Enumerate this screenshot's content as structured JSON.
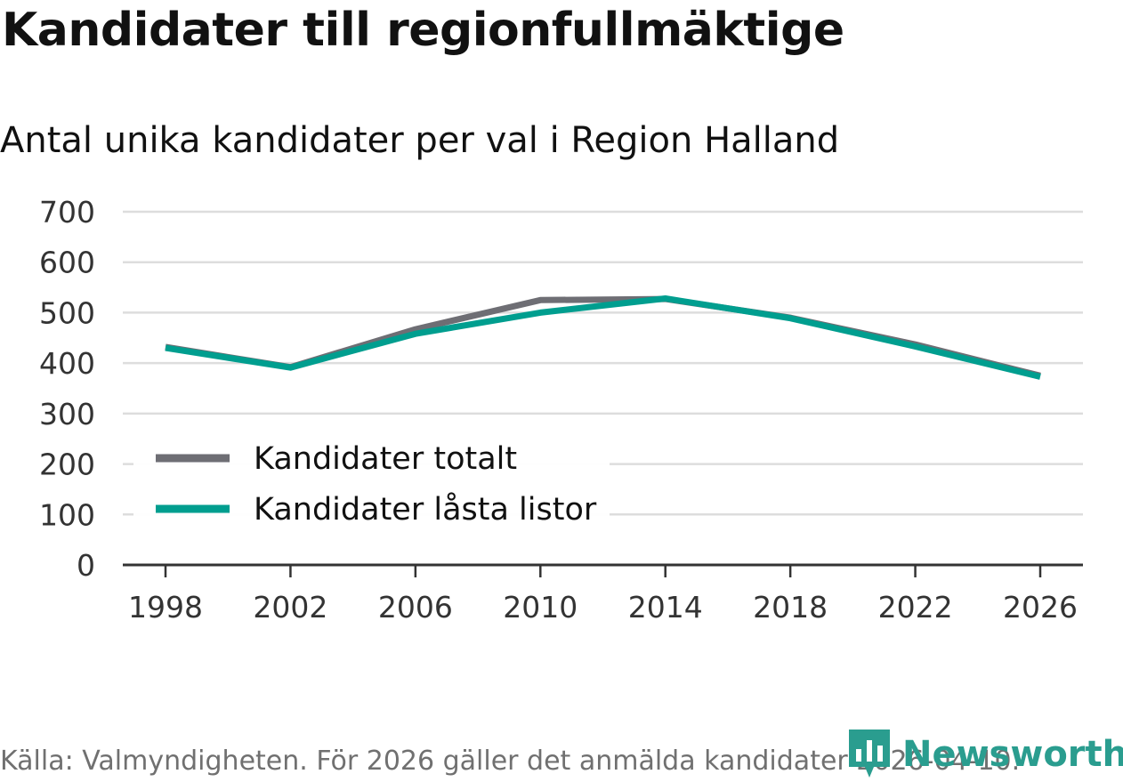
{
  "chart_data": {
    "type": "line",
    "title": "Kandidater till regionfullmäktige",
    "subtitle": "Antal unika kandidater per val i Region Halland",
    "x": [
      1998,
      2002,
      2006,
      2010,
      2014,
      2018,
      2022,
      2026
    ],
    "xticks": [
      "1998",
      "2002",
      "2006",
      "2010",
      "2014",
      "2018",
      "2022",
      "2026"
    ],
    "yticks": [
      "0",
      "100",
      "200",
      "300",
      "400",
      "500",
      "600",
      "700"
    ],
    "ylim": [
      0,
      700
    ],
    "xlabel": "",
    "ylabel": "",
    "grid": true,
    "legend_position": "bottom-left",
    "series": [
      {
        "name": "Kandidater totalt",
        "color": "#6e6e74",
        "values": [
          432,
          392,
          467,
          525,
          527,
          490,
          437,
          375
        ]
      },
      {
        "name": "Kandidater låsta listor",
        "color": "#009e8f",
        "values": [
          430,
          391,
          458,
          500,
          528,
          489,
          433,
          373
        ]
      }
    ],
    "source": "Källa: Valmyndigheten. För 2026 gäller det anmälda kandidater 2026-04-10."
  },
  "brand": {
    "name": "Newsworthy",
    "icon": "bar-chart-logo-icon",
    "color": "#2a9d8f"
  }
}
